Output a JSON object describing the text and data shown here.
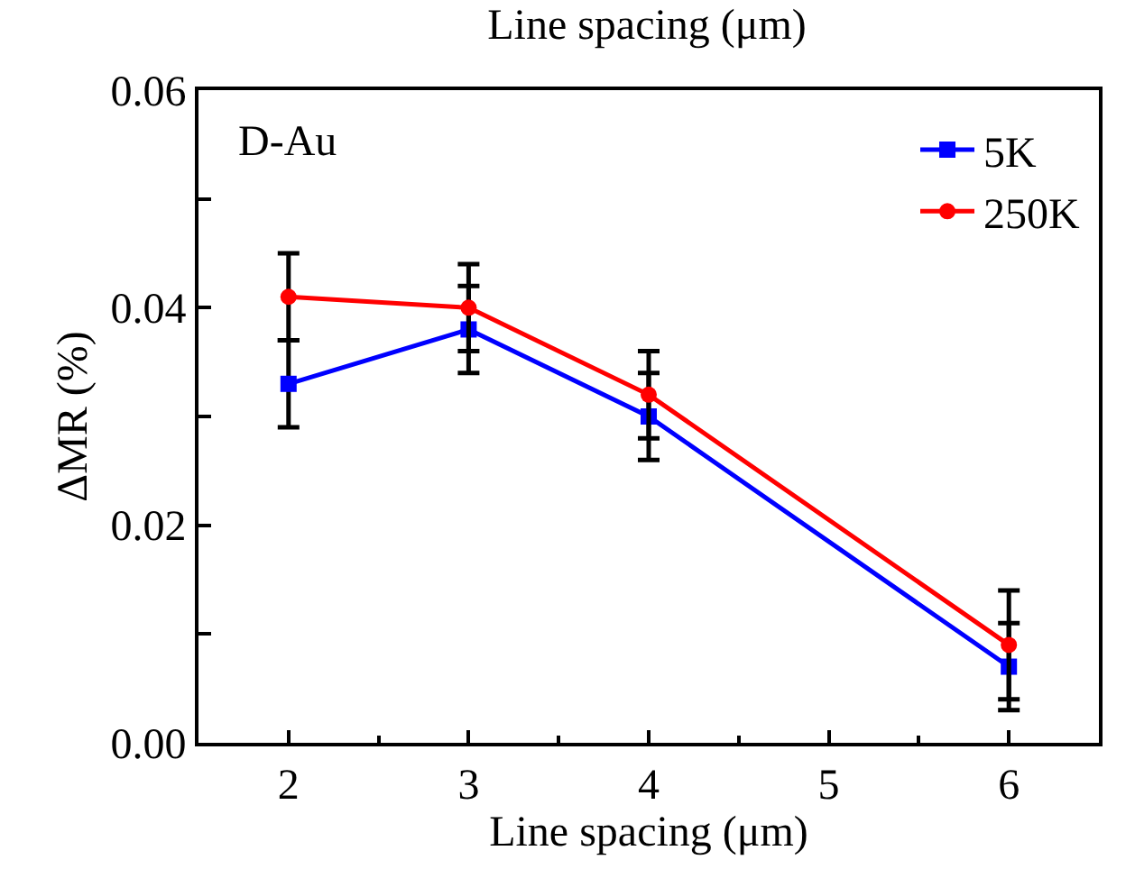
{
  "chart_data": {
    "type": "line",
    "title": "Line spacing (μm)",
    "xlabel": "Line spacing (μm)",
    "ylabel": "ΔMR (%)",
    "x": [
      2,
      3,
      4,
      6
    ],
    "series": [
      {
        "name": "5K",
        "color": "#0000ff",
        "marker": "square",
        "values": [
          0.033,
          0.038,
          0.03,
          0.007
        ],
        "errors": [
          0.004,
          0.004,
          0.004,
          0.004
        ]
      },
      {
        "name": "250K",
        "color": "#ff0000",
        "marker": "circle",
        "values": [
          0.041,
          0.04,
          0.032,
          0.009
        ],
        "errors": [
          0.004,
          0.004,
          0.004,
          [
            0.004,
            0.014
          ]
        ]
      }
    ],
    "xlim": [
      1.5,
      6.5
    ],
    "xticks": [
      2,
      3,
      4,
      5,
      6
    ],
    "ylim": [
      0,
      0.06
    ],
    "yticks": [
      "0.00",
      {
        "value": 0.01,
        "label": null
      },
      {
        "value": 0.02,
        "label": "0.02"
      },
      {
        "value": 0.03,
        "label": null
      },
      {
        "value": 0.04,
        "label": "0.04"
      },
      {
        "value": 0.05,
        "label": null
      },
      {
        "value": 0.06,
        "label": "0.06"
      }
    ],
    "annotations": [
      "D-Au"
    ],
    "legend": "top right",
    "line_style": "solid"
  }
}
